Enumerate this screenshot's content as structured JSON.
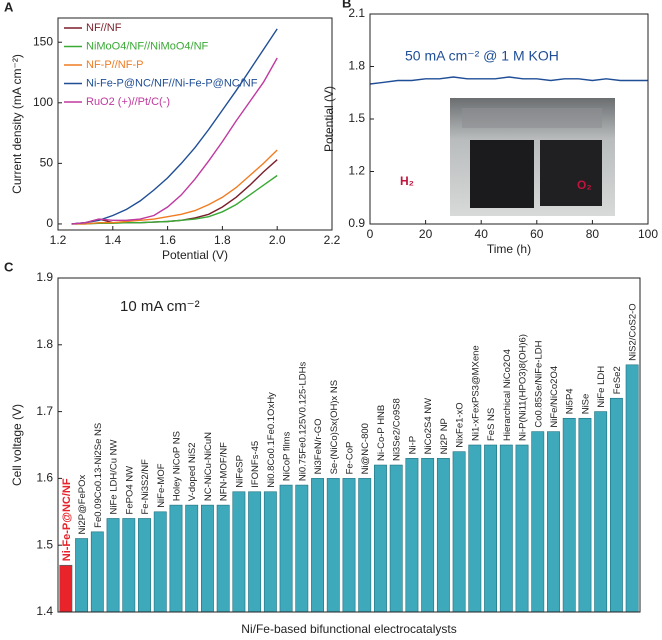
{
  "chart_data": [
    {
      "type": "line",
      "panel": "A",
      "xlabel": "Potential (V)",
      "ylabel": "Current density (mA cm⁻²)",
      "xlim": [
        1.2,
        2.2
      ],
      "xticks": [
        1.2,
        1.4,
        1.6,
        1.8,
        {
          "value": 2,
          "label": "2.0"
        },
        2.2
      ],
      "ylim": [
        -5,
        170
      ],
      "yticks": [
        0,
        50,
        100,
        150
      ],
      "legend": "upper left",
      "x": [
        1.25,
        1.3,
        1.35,
        1.4,
        1.45,
        1.5,
        1.55,
        1.6,
        1.65,
        1.7,
        1.75,
        1.8,
        1.85,
        1.9,
        1.95,
        2.0
      ],
      "series": [
        {
          "name": "NF//NF",
          "color": "#7a1f2b",
          "values": [
            0,
            1,
            4,
            1,
            1,
            1,
            1.5,
            2,
            3,
            5,
            8,
            14,
            22,
            32,
            43,
            53
          ]
        },
        {
          "name": "NiMoO4/NF//NiMoO4/NF",
          "color": "#3aa935",
          "values": [
            0,
            0,
            0.5,
            0.5,
            1,
            1,
            1.5,
            2,
            3,
            4,
            6,
            10,
            16,
            24,
            32,
            40
          ]
        },
        {
          "name": "NF-P//NF-P",
          "color": "#f07c22",
          "values": [
            0,
            0,
            1,
            1,
            2,
            3,
            4,
            6,
            8,
            11,
            16,
            22,
            30,
            40,
            50,
            61
          ]
        },
        {
          "name": "Ni-Fe-P@NC/NF//Ni-Fe-P@NC/NF",
          "color": "#1f4e96",
          "values": [
            0,
            1,
            3,
            7,
            12,
            19,
            28,
            38,
            50,
            63,
            78,
            94,
            110,
            127,
            144,
            161
          ]
        },
        {
          "name": "RuO2 (+)//Pt/C(-)",
          "color": "#c0399f",
          "values": [
            0,
            1,
            4,
            3,
            3,
            4,
            7,
            14,
            24,
            37,
            52,
            68,
            85,
            101,
            117,
            137
          ]
        }
      ]
    },
    {
      "type": "line",
      "panel": "B",
      "xlabel": "Time (h)",
      "ylabel": "Potential (V)",
      "xlim": [
        0,
        100
      ],
      "xticks": [
        0,
        20,
        40,
        60,
        80,
        100
      ],
      "ylim": [
        0.9,
        2.1
      ],
      "yticks": [
        0.9,
        1.2,
        1.5,
        1.8,
        2.1
      ],
      "annotation": "50 mA cm⁻² @ 1 M KOH",
      "inset_labels": [
        "H₂",
        "O₂"
      ],
      "x": [
        0,
        5,
        10,
        15,
        20,
        25,
        30,
        35,
        40,
        45,
        50,
        55,
        60,
        65,
        70,
        75,
        80,
        85,
        90,
        95,
        100
      ],
      "series": [
        {
          "color": "#1f4e96",
          "values": [
            1.7,
            1.71,
            1.72,
            1.72,
            1.73,
            1.73,
            1.74,
            1.73,
            1.73,
            1.73,
            1.74,
            1.73,
            1.73,
            1.72,
            1.73,
            1.73,
            1.72,
            1.73,
            1.72,
            1.72,
            1.72
          ]
        }
      ]
    },
    {
      "type": "bar",
      "panel": "C",
      "xlabel": "Ni/Fe-based bifunctional electrocatalysts",
      "ylabel": "Cell voltage (V)",
      "annotation": "10 mA cm⁻²",
      "ylim": [
        1.4,
        1.9
      ],
      "yticks": [
        1.4,
        1.5,
        1.6,
        1.7,
        1.8,
        1.9
      ],
      "categories": [
        "Ni-Fe-P@NC/NF",
        "Ni2P@FePOx",
        "Fe0.09Co0.13-Ni2Se NS",
        "NiFe LDH/Cu NW",
        "FePO4 NW",
        "Fe-Ni3S2/NF",
        "NiFe-MOF",
        "Holey NiCoP NS",
        "V-doped NiS2",
        "NC-NiCu-NiCuN",
        "NFN-MOF/NF",
        "NiFeSP",
        "IFONFs-45",
        "Ni0.8Co0.1Fe0.1OxHy",
        "NiCoP films",
        "Ni0.75Fe0.125V0.125-LDHs",
        "Ni3FeN/r-GO",
        "Se-(NiCo)Sx(OH)x NS",
        "Fe-CoP",
        "Ni@NC-800",
        "Ni-Co-P HNB",
        "Ni3Se2/Co9S8",
        "Ni-P",
        "NiCo2S4 NW",
        "Ni2P NP",
        "NixFe1-xO",
        "Ni1-xFexPS3@MXene",
        "FeS NS",
        "Hierarchical NiCo2O4",
        "Ni-P(Ni11(HPO3)8(OH)6)",
        "Co0.85Se/NiFe-LDH",
        "NiFe/NiCo2O4",
        "Ni5P4",
        "NiSe",
        "NiFe LDH",
        "FeSe2",
        "NiS2/CoS2-O"
      ],
      "values": [
        1.47,
        1.51,
        1.52,
        1.54,
        1.54,
        1.54,
        1.55,
        1.56,
        1.56,
        1.56,
        1.56,
        1.58,
        1.58,
        1.58,
        1.59,
        1.59,
        1.6,
        1.6,
        1.6,
        1.6,
        1.62,
        1.62,
        1.63,
        1.63,
        1.63,
        1.64,
        1.65,
        1.65,
        1.65,
        1.65,
        1.67,
        1.67,
        1.69,
        1.69,
        1.7,
        1.72,
        1.77
      ],
      "colors": [
        "#e8232a",
        "#3fa9bc",
        "#3fa9bc",
        "#3fa9bc",
        "#3fa9bc",
        "#3fa9bc",
        "#3fa9bc",
        "#3fa9bc",
        "#3fa9bc",
        "#3fa9bc",
        "#3fa9bc",
        "#3fa9bc",
        "#3fa9bc",
        "#3fa9bc",
        "#3fa9bc",
        "#3fa9bc",
        "#3fa9bc",
        "#3fa9bc",
        "#3fa9bc",
        "#3fa9bc",
        "#3fa9bc",
        "#3fa9bc",
        "#3fa9bc",
        "#3fa9bc",
        "#3fa9bc",
        "#3fa9bc",
        "#3fa9bc",
        "#3fa9bc",
        "#3fa9bc",
        "#3fa9bc",
        "#3fa9bc",
        "#3fa9bc",
        "#3fa9bc",
        "#3fa9bc",
        "#3fa9bc",
        "#3fa9bc",
        "#3fa9bc"
      ]
    }
  ]
}
